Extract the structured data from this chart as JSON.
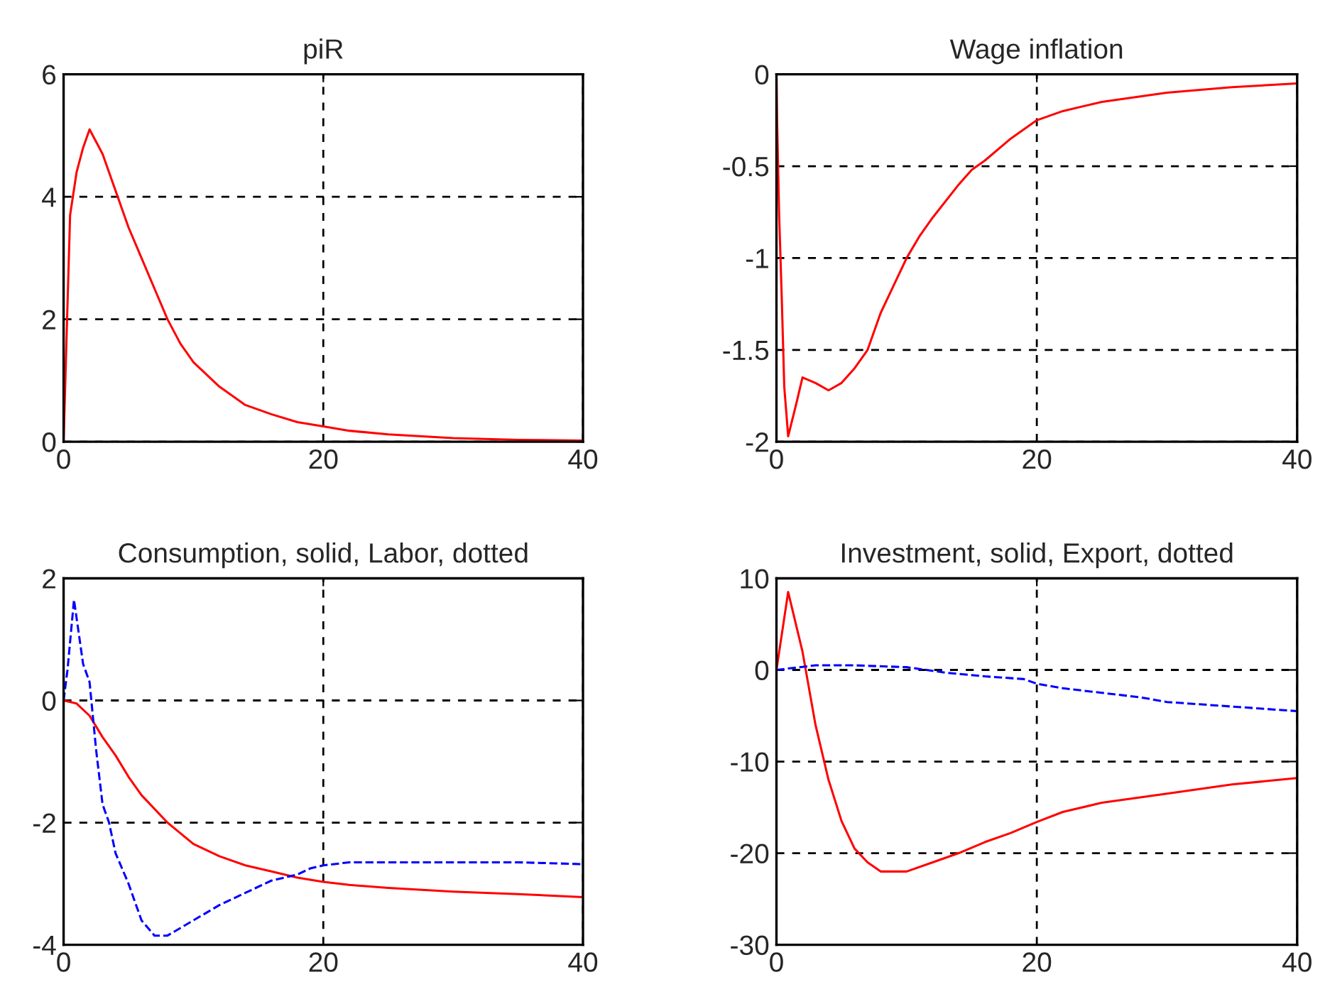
{
  "chart_data": [
    {
      "type": "line",
      "title": "piR",
      "xlim": [
        0,
        40
      ],
      "xticks": [
        0,
        20,
        40
      ],
      "ylim": [
        0,
        6
      ],
      "yticks": [
        0,
        2,
        4,
        6
      ],
      "grid": true,
      "series": [
        {
          "color": "#ff0000",
          "line_style": "solid",
          "x": [
            0,
            0.2,
            0.5,
            1,
            1.5,
            2,
            3,
            4,
            5,
            6,
            7,
            8,
            9,
            10,
            12,
            14,
            16,
            18,
            20,
            22,
            25,
            30,
            35,
            40
          ],
          "values": [
            0,
            1.5,
            3.7,
            4.4,
            4.8,
            5.1,
            4.7,
            4.1,
            3.5,
            3.0,
            2.5,
            2.0,
            1.6,
            1.3,
            0.9,
            0.6,
            0.45,
            0.32,
            0.25,
            0.18,
            0.12,
            0.06,
            0.03,
            0.02
          ]
        }
      ]
    },
    {
      "type": "line",
      "title": "Wage inflation",
      "xlim": [
        0,
        40
      ],
      "xticks": [
        0,
        20,
        40
      ],
      "ylim": [
        -2,
        0
      ],
      "yticks": [
        -2,
        -1.5,
        -1,
        -0.5,
        0
      ],
      "grid": true,
      "series": [
        {
          "color": "#ff0000",
          "line_style": "solid",
          "x": [
            0,
            0.05,
            0.2,
            0.4,
            0.6,
            0.9,
            1.5,
            2,
            3,
            4,
            5,
            6,
            7,
            8,
            9,
            10,
            11,
            12,
            14,
            15,
            16,
            18,
            20,
            22,
            25,
            30,
            35,
            40
          ],
          "values": [
            0,
            -0.25,
            -0.75,
            -1.2,
            -1.7,
            -1.97,
            -1.8,
            -1.65,
            -1.68,
            -1.72,
            -1.68,
            -1.6,
            -1.5,
            -1.3,
            -1.15,
            -1.0,
            -0.88,
            -0.78,
            -0.6,
            -0.52,
            -0.47,
            -0.35,
            -0.25,
            -0.2,
            -0.15,
            -0.1,
            -0.07,
            -0.05
          ]
        }
      ]
    },
    {
      "type": "line",
      "title": "Consumption, solid, Labor, dotted",
      "xlim": [
        0,
        40
      ],
      "xticks": [
        0,
        20,
        40
      ],
      "ylim": [
        -4,
        2
      ],
      "yticks": [
        -4,
        -2,
        0,
        2
      ],
      "grid": true,
      "series": [
        {
          "color": "#ff0000",
          "line_style": "solid",
          "x": [
            0,
            1,
            2,
            3,
            4,
            5,
            6,
            8,
            10,
            12,
            14,
            16,
            18,
            20,
            22,
            25,
            30,
            35,
            40
          ],
          "values": [
            0,
            -0.05,
            -0.25,
            -0.6,
            -0.9,
            -1.25,
            -1.55,
            -2.0,
            -2.35,
            -2.55,
            -2.7,
            -2.8,
            -2.9,
            -2.97,
            -3.02,
            -3.07,
            -3.13,
            -3.17,
            -3.22
          ]
        },
        {
          "color": "#0000ff",
          "line_style": "dashed",
          "x": [
            0,
            0.3,
            0.8,
            1.5,
            2,
            2.5,
            3,
            3.5,
            4,
            5,
            6,
            7,
            8,
            10,
            12,
            14,
            16,
            18,
            19,
            20,
            22,
            25,
            30,
            35,
            40
          ],
          "values": [
            0,
            0.5,
            1.65,
            0.6,
            0.3,
            -0.8,
            -1.7,
            -2.0,
            -2.5,
            -3.0,
            -3.6,
            -3.85,
            -3.85,
            -3.6,
            -3.35,
            -3.15,
            -2.95,
            -2.85,
            -2.75,
            -2.7,
            -2.65,
            -2.65,
            -2.65,
            -2.65,
            -2.68
          ]
        }
      ]
    },
    {
      "type": "line",
      "title": "Investment, solid, Export, dotted",
      "xlim": [
        0,
        40
      ],
      "xticks": [
        0,
        20,
        40
      ],
      "ylim": [
        -30,
        10
      ],
      "yticks": [
        -30,
        -20,
        -10,
        0,
        10
      ],
      "grid": true,
      "series": [
        {
          "color": "#ff0000",
          "line_style": "solid",
          "x": [
            0,
            0.9,
            2,
            3,
            4,
            5,
            6,
            7,
            8,
            9,
            10,
            12,
            14,
            16,
            18,
            20,
            22,
            25,
            30,
            35,
            40
          ],
          "values": [
            0,
            8.5,
            2,
            -6,
            -12,
            -16.5,
            -19.5,
            -21,
            -22,
            -22,
            -22,
            -21,
            -20,
            -18.8,
            -17.8,
            -16.6,
            -15.5,
            -14.5,
            -13.5,
            -12.5,
            -11.8
          ]
        },
        {
          "color": "#0000ff",
          "line_style": "dashed",
          "x": [
            0,
            3,
            6,
            10,
            13,
            16,
            19,
            20,
            22,
            25,
            28,
            30,
            35,
            40
          ],
          "values": [
            0,
            0.5,
            0.5,
            0.3,
            -0.3,
            -0.7,
            -1.0,
            -1.5,
            -2.0,
            -2.5,
            -3.0,
            -3.5,
            -4.0,
            -4.5
          ]
        }
      ]
    }
  ]
}
